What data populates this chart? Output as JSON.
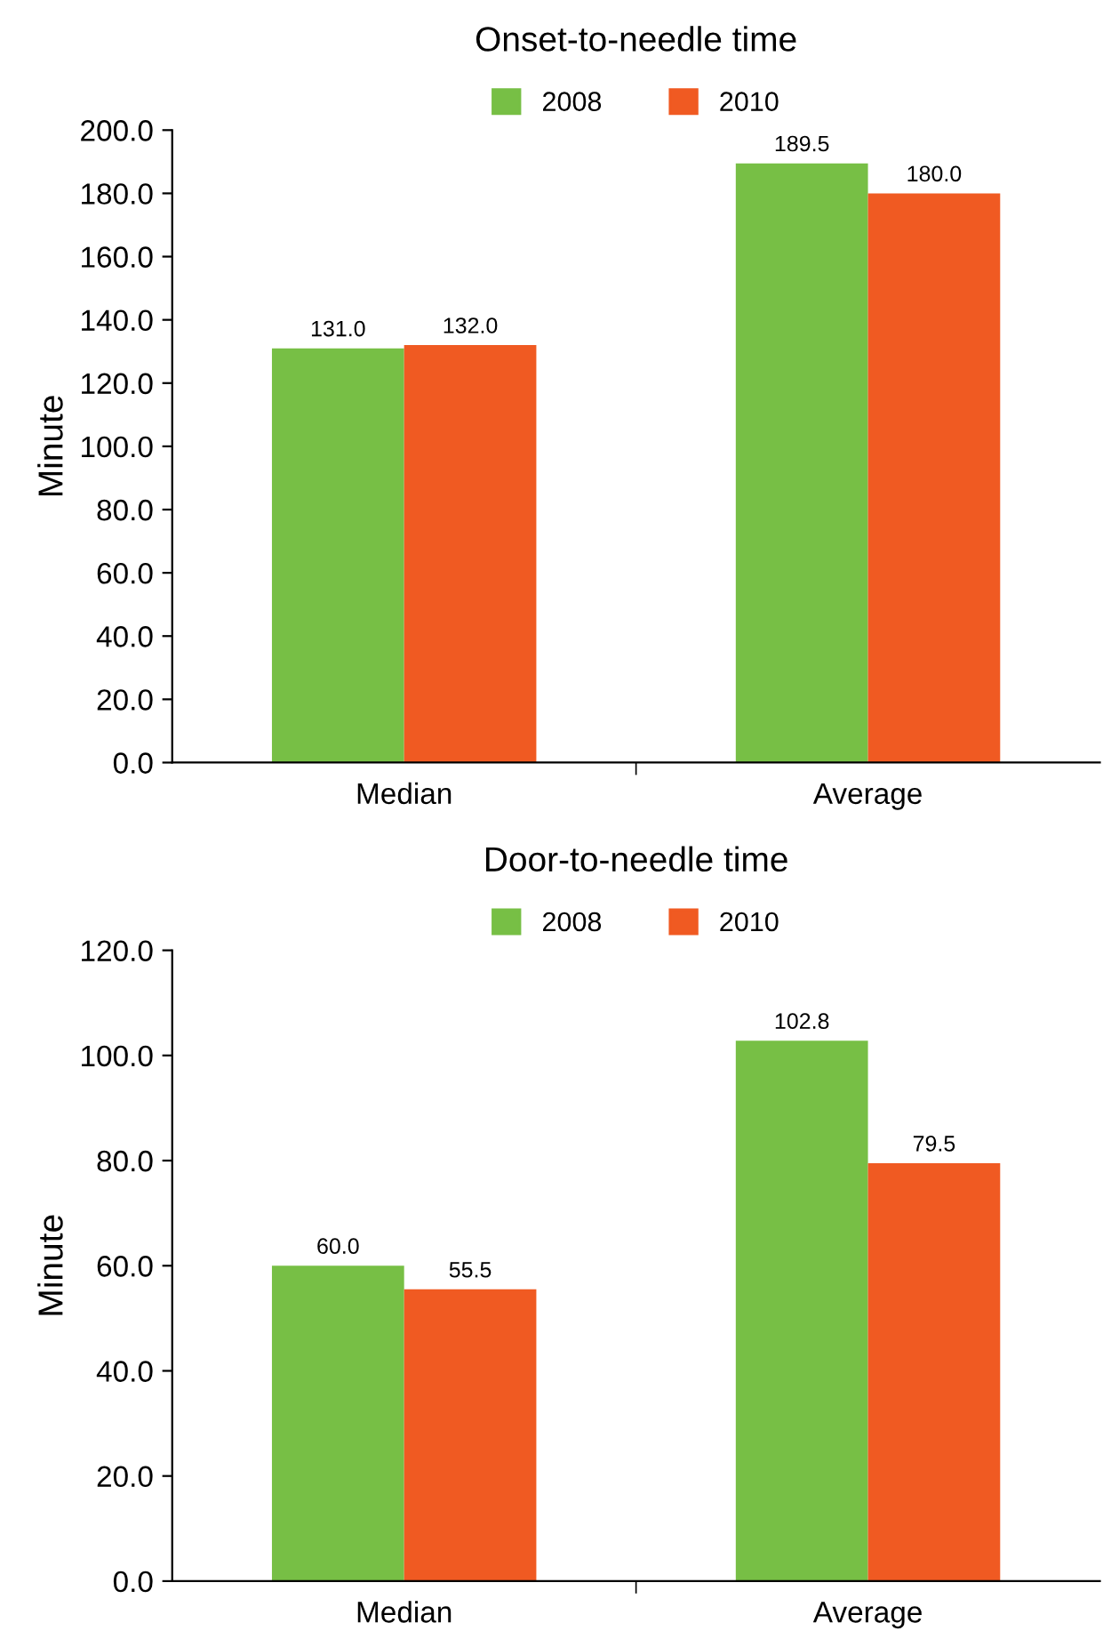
{
  "chart_data": [
    {
      "type": "bar",
      "title": "Onset-to-needle time",
      "ylabel": "Minute",
      "categories": [
        "Median",
        "Average"
      ],
      "legend": "top",
      "series": [
        {
          "name": "2008",
          "color": "#77bf45",
          "values": [
            131.0,
            189.5
          ],
          "value_labels": [
            "131.0",
            "189.5"
          ]
        },
        {
          "name": "2010",
          "color": "#f05a22",
          "values": [
            132.0,
            180.0
          ],
          "value_labels": [
            "132.0",
            "180.0"
          ]
        }
      ],
      "ylim": [
        0,
        200
      ],
      "yticks": [
        {
          "value": 0,
          "label": "0.0"
        },
        {
          "value": 20,
          "label": "20.0"
        },
        {
          "value": 40,
          "label": "40.0"
        },
        {
          "value": 60,
          "label": "60.0"
        },
        {
          "value": 80,
          "label": "80.0"
        },
        {
          "value": 100,
          "label": "100.0"
        },
        {
          "value": 120,
          "label": "120.0"
        },
        {
          "value": 140,
          "label": "140.0"
        },
        {
          "value": 160,
          "label": "160.0"
        },
        {
          "value": 180,
          "label": "180.0"
        },
        {
          "value": 200,
          "label": "200.0"
        }
      ]
    },
    {
      "type": "bar",
      "title": "Door-to-needle time",
      "ylabel": "Minute",
      "categories": [
        "Median",
        "Average"
      ],
      "legend": "top",
      "series": [
        {
          "name": "2008",
          "color": "#77bf45",
          "values": [
            60.0,
            102.8
          ],
          "value_labels": [
            "60.0",
            "102.8"
          ]
        },
        {
          "name": "2010",
          "color": "#f05a22",
          "values": [
            55.5,
            79.5
          ],
          "value_labels": [
            "55.5",
            "79.5"
          ]
        }
      ],
      "ylim": [
        0,
        120
      ],
      "yticks": [
        {
          "value": 0,
          "label": "0.0"
        },
        {
          "value": 20,
          "label": "20.0"
        },
        {
          "value": 40,
          "label": "40.0"
        },
        {
          "value": 60,
          "label": "60.0"
        },
        {
          "value": 80,
          "label": "80.0"
        },
        {
          "value": 100,
          "label": "100.0"
        },
        {
          "value": 120,
          "label": "120.0"
        }
      ]
    }
  ]
}
